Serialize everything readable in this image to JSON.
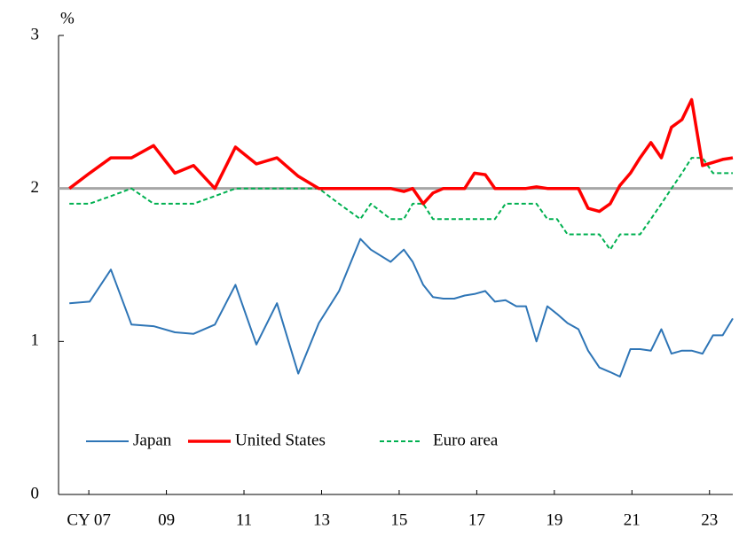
{
  "chart_data": {
    "type": "line",
    "y_unit_label": "%",
    "x": [
      2007.0,
      2007.52,
      2008.07,
      2008.6,
      2009.17,
      2009.72,
      2010.2,
      2010.75,
      2011.28,
      2011.82,
      2012.35,
      2012.9,
      2013.43,
      2013.95,
      2014.5,
      2014.77,
      2015.28,
      2015.62,
      2015.85,
      2016.12,
      2016.37,
      2016.64,
      2016.92,
      2017.19,
      2017.44,
      2017.72,
      2017.97,
      2018.24,
      2018.52,
      2018.77,
      2019.04,
      2019.32,
      2019.57,
      2019.84,
      2020.12,
      2020.37,
      2020.66,
      2020.94,
      2021.19,
      2021.46,
      2021.71,
      2021.99,
      2022.26,
      2022.52,
      2022.79,
      2023.04,
      2023.32,
      2023.59,
      2023.84,
      2024.1
    ],
    "series": [
      {
        "name": "Japan",
        "color": "#2e75b6",
        "dash": false,
        "width": 2,
        "values": [
          1.25,
          1.26,
          1.47,
          1.11,
          1.1,
          1.06,
          1.05,
          1.11,
          1.37,
          0.98,
          1.25,
          0.79,
          1.12,
          1.33,
          1.67,
          1.6,
          1.52,
          1.6,
          1.52,
          1.37,
          1.29,
          1.28,
          1.28,
          1.3,
          1.31,
          1.33,
          1.26,
          1.27,
          1.23,
          1.23,
          1.0,
          1.23,
          1.18,
          1.12,
          1.08,
          0.94,
          0.83,
          0.8,
          0.77,
          0.95,
          0.95,
          0.94,
          1.08,
          0.92,
          0.94,
          0.94,
          0.92,
          1.04,
          1.04,
          1.15
        ]
      },
      {
        "name": "United States",
        "color": "#ff0000",
        "dash": false,
        "width": 3.5,
        "values": [
          2.0,
          2.1,
          2.2,
          2.2,
          2.28,
          2.1,
          2.15,
          2.0,
          2.27,
          2.16,
          2.2,
          2.08,
          2.0,
          2.0,
          2.0,
          2.0,
          2.0,
          1.98,
          2.0,
          1.9,
          1.97,
          2.0,
          2.0,
          2.0,
          2.1,
          2.09,
          2.0,
          2.0,
          2.0,
          2.0,
          2.01,
          2.0,
          2.0,
          2.0,
          2.0,
          1.87,
          1.85,
          1.9,
          2.02,
          2.1,
          2.2,
          2.3,
          2.2,
          2.4,
          2.45,
          2.58,
          2.15,
          2.17,
          2.19,
          2.2
        ]
      },
      {
        "name": "Euro area",
        "color": "#00b050",
        "dash": true,
        "width": 2,
        "values": [
          1.9,
          1.9,
          1.95,
          2.0,
          1.9,
          1.9,
          1.9,
          1.95,
          2.0,
          2.0,
          2.0,
          2.0,
          2.0,
          1.9,
          1.8,
          1.9,
          1.8,
          1.8,
          1.9,
          1.9,
          1.8,
          1.8,
          1.8,
          1.8,
          1.8,
          1.8,
          1.8,
          1.9,
          1.9,
          1.9,
          1.9,
          1.8,
          1.8,
          1.7,
          1.7,
          1.7,
          1.7,
          1.6,
          1.7,
          1.7,
          1.7,
          1.8,
          1.9,
          2.0,
          2.1,
          2.2,
          2.2,
          2.1,
          2.1,
          2.1
        ]
      }
    ],
    "reference_line": 2,
    "xlim": [
      2006.72,
      2024.1
    ],
    "xticks": [
      {
        "value": 2007.5,
        "label": "CY 07"
      },
      {
        "value": 2009.5,
        "label": "09"
      },
      {
        "value": 2011.5,
        "label": "11"
      },
      {
        "value": 2013.5,
        "label": "13"
      },
      {
        "value": 2015.5,
        "label": "15"
      },
      {
        "value": 2017.5,
        "label": "17"
      },
      {
        "value": 2019.5,
        "label": "19"
      },
      {
        "value": 2021.5,
        "label": "21"
      },
      {
        "value": 2023.5,
        "label": "23"
      }
    ],
    "ylim": [
      0,
      3
    ],
    "yticks": [
      0,
      1,
      2,
      3
    ],
    "legend": "bottom-left"
  }
}
